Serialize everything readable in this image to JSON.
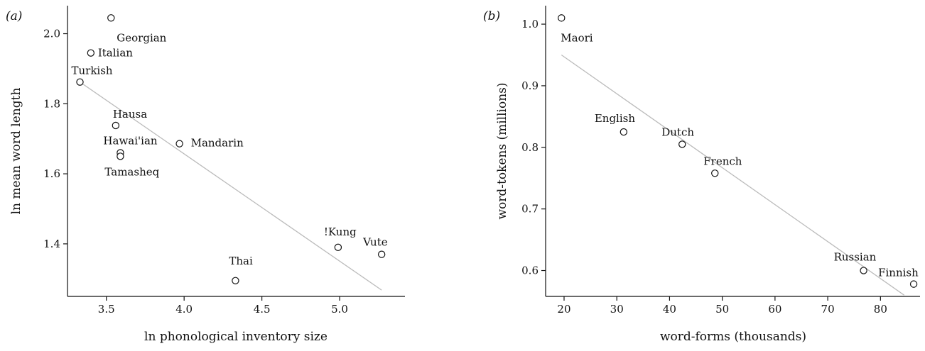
{
  "colors": {
    "axis": "#111111",
    "point": "#111111",
    "fit_line": "#bbbbbb"
  },
  "chart_data": [
    {
      "type": "scatter",
      "panel_label": "(a)",
      "xlabel": "ln phonological inventory size",
      "ylabel": "ln mean word length",
      "xlim": [
        3.25,
        5.42
      ],
      "ylim": [
        1.25,
        2.08
      ],
      "xticks": [
        3.5,
        4.0,
        4.5,
        5.0
      ],
      "xtick_labels": [
        "3.5",
        "4.0",
        "4.5",
        "5.0"
      ],
      "yticks": [
        1.4,
        1.6,
        1.8,
        2.0
      ],
      "ytick_labels": [
        "1.4",
        "1.6",
        "1.8",
        "2.0"
      ],
      "grid": false,
      "points": [
        {
          "label": "Georgian",
          "x": 3.53,
          "y": 2.045
        },
        {
          "label": "Italian",
          "x": 3.4,
          "y": 1.945
        },
        {
          "label": "Turkish",
          "x": 3.33,
          "y": 1.862
        },
        {
          "label": "Hausa",
          "x": 3.56,
          "y": 1.738
        },
        {
          "label": "Hawai'ian",
          "x": 3.59,
          "y": 1.66
        },
        {
          "label": "Tamasheq",
          "x": 3.59,
          "y": 1.65
        },
        {
          "label": "Mandarin",
          "x": 3.97,
          "y": 1.686
        },
        {
          "label": "Thai",
          "x": 4.33,
          "y": 1.295
        },
        {
          "label": "!Kung",
          "x": 4.99,
          "y": 1.39
        },
        {
          "label": "Vute",
          "x": 5.27,
          "y": 1.37
        }
      ],
      "fit_line": {
        "x": [
          3.33,
          5.27
        ],
        "y": [
          1.862,
          1.268
        ]
      }
    },
    {
      "type": "scatter",
      "panel_label": "(b)",
      "xlabel": "word-forms (thousands)",
      "ylabel": "word-tokens (millions)",
      "xlim": [
        16.5,
        87.5
      ],
      "ylim": [
        0.558,
        1.03
      ],
      "xticks": [
        20,
        30,
        40,
        50,
        60,
        70,
        80
      ],
      "xtick_labels": [
        "20",
        "30",
        "40",
        "50",
        "60",
        "70",
        "80"
      ],
      "yticks": [
        0.6,
        0.7,
        0.8,
        0.9,
        1.0
      ],
      "ytick_labels": [
        "0.6",
        "0.7",
        "0.8",
        "0.9",
        "1.0"
      ],
      "grid": false,
      "points": [
        {
          "label": "Maori",
          "x": 19.5,
          "y": 1.01
        },
        {
          "label": "English",
          "x": 31.3,
          "y": 0.825
        },
        {
          "label": "Dutch",
          "x": 42.4,
          "y": 0.805
        },
        {
          "label": "French",
          "x": 48.6,
          "y": 0.758
        },
        {
          "label": "Russian",
          "x": 76.8,
          "y": 0.6
        },
        {
          "label": "Finnish",
          "x": 86.3,
          "y": 0.578
        }
      ],
      "fit_line": {
        "x": [
          19.5,
          84.5
        ],
        "y": [
          0.95,
          0.56
        ]
      }
    }
  ]
}
